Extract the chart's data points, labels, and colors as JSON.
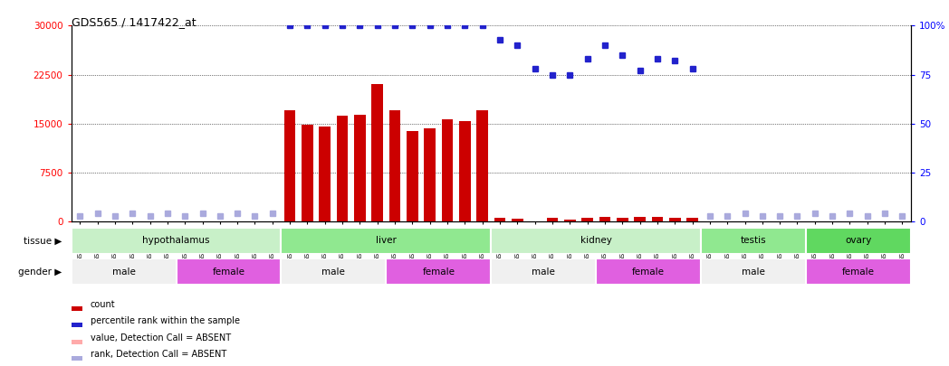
{
  "title": "GDS565 / 1417422_at",
  "samples": [
    "GSM19215",
    "GSM19216",
    "GSM19217",
    "GSM19218",
    "GSM19219",
    "GSM19220",
    "GSM19221",
    "GSM19222",
    "GSM19223",
    "GSM19224",
    "GSM19225",
    "GSM19226",
    "GSM19227",
    "GSM19228",
    "GSM19229",
    "GSM19230",
    "GSM19231",
    "GSM19232",
    "GSM19233",
    "GSM19234",
    "GSM19235",
    "GSM19236",
    "GSM19237",
    "GSM19238",
    "GSM19239",
    "GSM19240",
    "GSM19241",
    "GSM19242",
    "GSM19243",
    "GSM19244",
    "GSM19245",
    "GSM19246",
    "GSM19247",
    "GSM19248",
    "GSM19249",
    "GSM19250",
    "GSM19251",
    "GSM19252",
    "GSM19253",
    "GSM19254",
    "GSM19255",
    "GSM19256",
    "GSM19257",
    "GSM19258",
    "GSM19259",
    "GSM19260",
    "GSM19261",
    "GSM19262"
  ],
  "bar_values": [
    0,
    0,
    0,
    0,
    0,
    0,
    0,
    0,
    0,
    0,
    0,
    0,
    17000,
    14800,
    14500,
    16200,
    16400,
    21000,
    17000,
    13800,
    14200,
    15600,
    15400,
    17000,
    500,
    400,
    0,
    500,
    300,
    500,
    700,
    600,
    700,
    700,
    500,
    500,
    0,
    0,
    0,
    0,
    0,
    0,
    0,
    0,
    0,
    0,
    0,
    0
  ],
  "percentile_values": [
    3,
    4,
    3,
    4,
    3,
    4,
    3,
    4,
    3,
    4,
    3,
    4,
    100,
    100,
    100,
    100,
    100,
    100,
    100,
    100,
    100,
    100,
    100,
    100,
    93,
    90,
    78,
    75,
    75,
    83,
    90,
    85,
    77,
    83,
    82,
    78,
    3,
    3,
    4,
    3,
    3,
    3,
    4,
    3,
    4,
    3,
    4,
    3
  ],
  "absent_mask": [
    true,
    true,
    true,
    true,
    true,
    true,
    true,
    true,
    true,
    true,
    true,
    true,
    false,
    false,
    false,
    false,
    false,
    false,
    false,
    false,
    false,
    false,
    false,
    false,
    false,
    false,
    false,
    false,
    false,
    false,
    false,
    false,
    false,
    false,
    false,
    false,
    true,
    true,
    true,
    true,
    true,
    true,
    true,
    true,
    true,
    true,
    true,
    true
  ],
  "tissues": [
    {
      "label": "hypothalamus",
      "start": 0,
      "end": 12,
      "color": "#c8f0c8"
    },
    {
      "label": "liver",
      "start": 12,
      "end": 24,
      "color": "#90e890"
    },
    {
      "label": "kidney",
      "start": 24,
      "end": 36,
      "color": "#c8f0c8"
    },
    {
      "label": "testis",
      "start": 36,
      "end": 42,
      "color": "#90e890"
    },
    {
      "label": "ovary",
      "start": 42,
      "end": 48,
      "color": "#60d860"
    }
  ],
  "genders": [
    {
      "label": "male",
      "start": 0,
      "end": 6,
      "color": "#f0f0f0"
    },
    {
      "label": "female",
      "start": 6,
      "end": 12,
      "color": "#e060e0"
    },
    {
      "label": "male",
      "start": 12,
      "end": 18,
      "color": "#f0f0f0"
    },
    {
      "label": "female",
      "start": 18,
      "end": 24,
      "color": "#e060e0"
    },
    {
      "label": "male",
      "start": 24,
      "end": 30,
      "color": "#f0f0f0"
    },
    {
      "label": "female",
      "start": 30,
      "end": 36,
      "color": "#e060e0"
    },
    {
      "label": "male",
      "start": 36,
      "end": 42,
      "color": "#f0f0f0"
    },
    {
      "label": "female",
      "start": 42,
      "end": 48,
      "color": "#e060e0"
    }
  ],
  "bar_color": "#cc0000",
  "dot_color": "#2222cc",
  "absent_bar_color": "#ffaaaa",
  "absent_dot_color": "#aaaadd",
  "ylim_left": [
    0,
    30000
  ],
  "ylim_right": [
    0,
    100
  ],
  "yticks_left": [
    0,
    7500,
    15000,
    22500,
    30000
  ],
  "yticks_right": [
    0,
    25,
    50,
    75,
    100
  ],
  "background_color": "#ffffff",
  "grid_color": "#000000",
  "legend_items": [
    {
      "label": "count",
      "color": "#cc0000"
    },
    {
      "label": "percentile rank within the sample",
      "color": "#2222cc"
    },
    {
      "label": "value, Detection Call = ABSENT",
      "color": "#ffaaaa"
    },
    {
      "label": "rank, Detection Call = ABSENT",
      "color": "#aaaadd"
    }
  ]
}
